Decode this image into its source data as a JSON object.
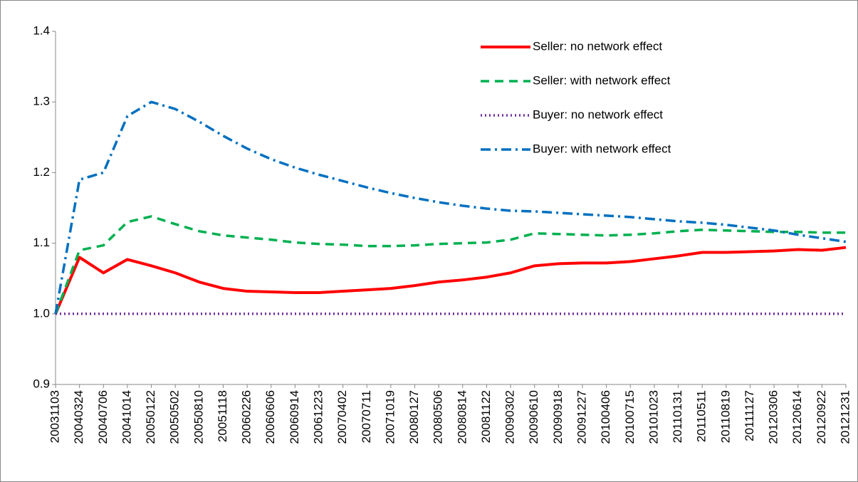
{
  "chart_data": {
    "type": "line",
    "categories": [
      "20031103",
      "20040324",
      "20040706",
      "20041014",
      "20050122",
      "20050502",
      "20050810",
      "20051118",
      "20060226",
      "20060606",
      "20060914",
      "20061223",
      "20070402",
      "20070711",
      "20071019",
      "20080127",
      "20080506",
      "20080814",
      "20081122",
      "20090302",
      "20090610",
      "20090918",
      "20091227",
      "20100406",
      "20100715",
      "20101023",
      "20110131",
      "20110511",
      "20110819",
      "20111127",
      "20120306",
      "20120614",
      "20120922",
      "20121231"
    ],
    "series": [
      {
        "name": "Seller: no network effect",
        "color": "#ff0000",
        "dash": "solid",
        "values": [
          1.0,
          1.08,
          1.058,
          1.077,
          1.068,
          1.058,
          1.045,
          1.036,
          1.032,
          1.031,
          1.03,
          1.03,
          1.032,
          1.034,
          1.036,
          1.04,
          1.045,
          1.048,
          1.052,
          1.058,
          1.068,
          1.071,
          1.072,
          1.072,
          1.074,
          1.078,
          1.082,
          1.087,
          1.087,
          1.088,
          1.089,
          1.091,
          1.09,
          1.094
        ]
      },
      {
        "name": "Seller: with network effect",
        "color": "#00b050",
        "dash": "dashed",
        "values": [
          1.0,
          1.09,
          1.097,
          1.13,
          1.138,
          1.127,
          1.117,
          1.111,
          1.108,
          1.105,
          1.101,
          1.099,
          1.098,
          1.096,
          1.096,
          1.097,
          1.099,
          1.1,
          1.101,
          1.105,
          1.114,
          1.113,
          1.112,
          1.111,
          1.112,
          1.114,
          1.117,
          1.119,
          1.118,
          1.117,
          1.116,
          1.116,
          1.115,
          1.115
        ]
      },
      {
        "name": "Buyer: no network effect",
        "color": "#7030a0",
        "dash": "dotted",
        "values": [
          1.0,
          1.0,
          1.0,
          1.0,
          1.0,
          1.0,
          1.0,
          1.0,
          1.0,
          1.0,
          1.0,
          1.0,
          1.0,
          1.0,
          1.0,
          1.0,
          1.0,
          1.0,
          1.0,
          1.0,
          1.0,
          1.0,
          1.0,
          1.0,
          1.0,
          1.0,
          1.0,
          1.0,
          1.0,
          1.0,
          1.0,
          1.0,
          1.0,
          1.0
        ]
      },
      {
        "name": "Buyer: with network effect",
        "color": "#0070c0",
        "dash": "dashdot",
        "values": [
          1.0,
          1.19,
          1.2,
          1.28,
          1.3,
          1.29,
          1.272,
          1.252,
          1.234,
          1.219,
          1.207,
          1.197,
          1.188,
          1.179,
          1.171,
          1.164,
          1.158,
          1.153,
          1.149,
          1.146,
          1.145,
          1.143,
          1.141,
          1.139,
          1.137,
          1.134,
          1.131,
          1.129,
          1.126,
          1.122,
          1.118,
          1.112,
          1.107,
          1.102
        ]
      }
    ],
    "ylim": [
      0.9,
      1.4
    ],
    "yticks": [
      0.9,
      {
        "value": 1.0,
        "label": "1.0"
      },
      1.1,
      1.2,
      1.3,
      1.4
    ],
    "grid": false,
    "legend": "top-right"
  }
}
